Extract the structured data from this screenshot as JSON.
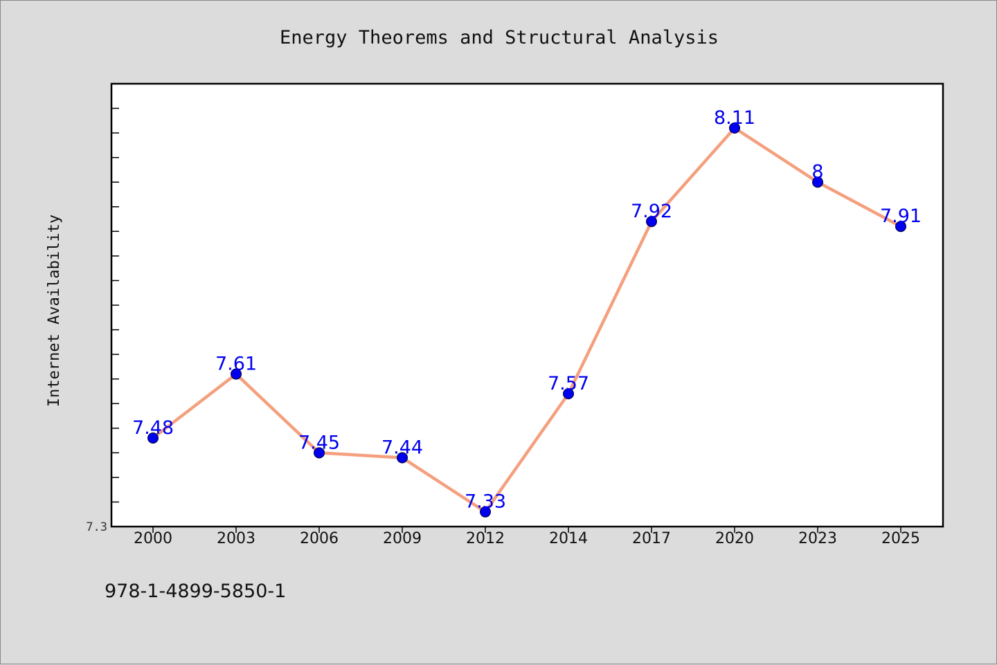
{
  "chart_data": {
    "type": "line",
    "title": "Energy Theorems and Structural Analysis",
    "xlabel": "",
    "ylabel": "Internet Availability",
    "categories": [
      "2000",
      "2003",
      "2006",
      "2009",
      "2012",
      "2014",
      "2017",
      "2020",
      "2023",
      "2025"
    ],
    "series": [
      {
        "values": [
          7.48,
          7.61,
          7.45,
          7.44,
          7.33,
          7.57,
          7.92,
          8.11,
          8.0,
          7.91
        ],
        "labels": [
          "7.48",
          "7.61",
          "7.45",
          "7.44",
          "7.33",
          "7.57",
          "7.92",
          "8.11",
          "8",
          "7.91"
        ]
      }
    ],
    "ylim": [
      7.3,
      8.2
    ],
    "yticks_labeled": [
      "7.3"
    ],
    "grid": false,
    "legend": "none",
    "colors": {
      "line": "#f4a07e",
      "marker": "#0000ee",
      "label": "#0000ee"
    }
  },
  "footer": {
    "isbn": "978-1-4899-5850-1"
  }
}
